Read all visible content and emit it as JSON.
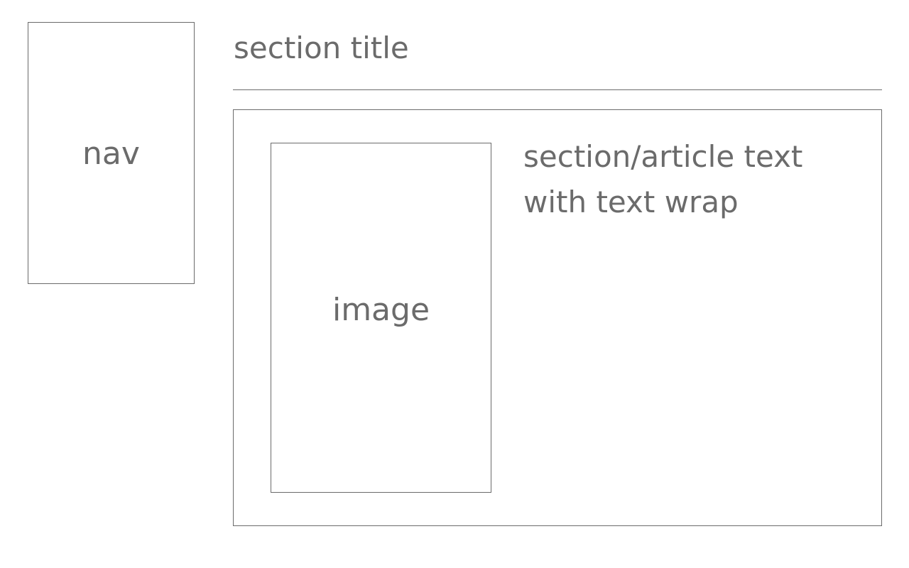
{
  "nav": {
    "label": "nav"
  },
  "section": {
    "title": "section title",
    "article_text": "section/article text with text wrap",
    "image_label": "image"
  },
  "colors": {
    "stroke": "#6b6b6b",
    "text": "#6b6b6b",
    "background": "#ffffff"
  }
}
